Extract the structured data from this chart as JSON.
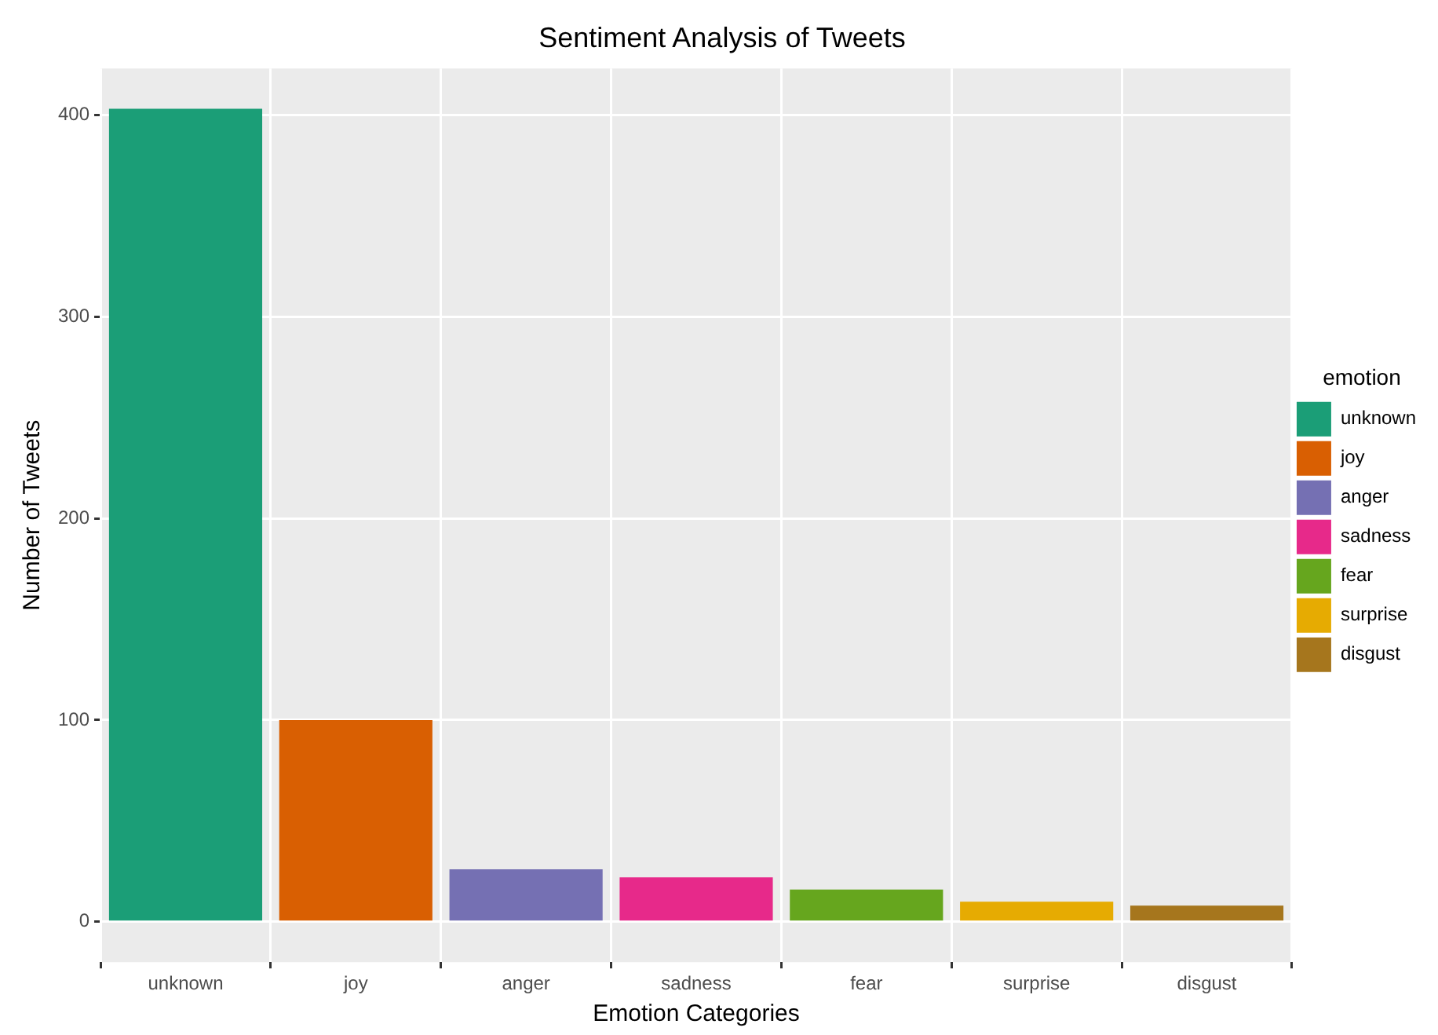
{
  "chart_data": {
    "type": "bar",
    "title": "Sentiment Analysis of Tweets",
    "xlabel": "Emotion Categories",
    "ylabel": "Number of Tweets",
    "legend_title": "emotion",
    "categories": [
      "unknown",
      "joy",
      "anger",
      "sadness",
      "fear",
      "surprise",
      "disgust"
    ],
    "series": [
      {
        "name": "unknown",
        "color": "#1b9e77",
        "values": [
          403,
          null,
          null,
          null,
          null,
          null,
          null
        ]
      },
      {
        "name": "joy",
        "color": "#d95f02",
        "values": [
          null,
          100,
          null,
          null,
          null,
          null,
          null
        ]
      },
      {
        "name": "anger",
        "color": "#7570b3",
        "values": [
          null,
          null,
          26,
          null,
          null,
          null,
          null
        ]
      },
      {
        "name": "sadness",
        "color": "#e7298a",
        "values": [
          null,
          null,
          null,
          22,
          null,
          null,
          null
        ]
      },
      {
        "name": "fear",
        "color": "#66a61e",
        "values": [
          null,
          null,
          null,
          null,
          16,
          null,
          null
        ]
      },
      {
        "name": "surprise",
        "color": "#e6ab02",
        "values": [
          null,
          null,
          null,
          null,
          null,
          10,
          null
        ]
      },
      {
        "name": "disgust",
        "color": "#a6761d",
        "values": [
          null,
          null,
          null,
          null,
          null,
          null,
          8
        ]
      }
    ],
    "ylim": [
      -20,
      423
    ],
    "yticks": [
      0,
      100,
      200,
      300,
      400
    ],
    "grid": true,
    "legend": "right"
  }
}
